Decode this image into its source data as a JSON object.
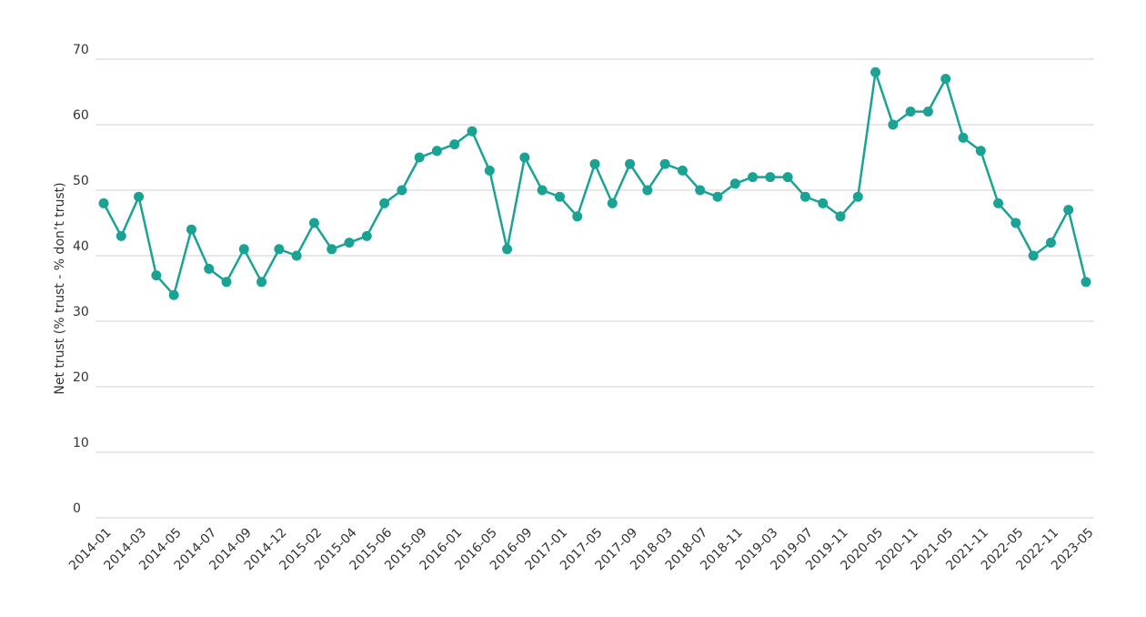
{
  "chart_data": {
    "type": "line",
    "y_label": "Net trust (% trust - % don’t trust)",
    "categories": [
      "2014-01",
      null,
      "2014-03",
      null,
      "2014-05",
      null,
      "2014-07",
      null,
      "2014-09",
      null,
      "2014-12",
      null,
      "2015-02",
      null,
      "2015-04",
      null,
      "2015-06",
      null,
      "2015-09",
      null,
      "2016-01",
      null,
      "2016-05",
      null,
      "2016-09",
      null,
      "2017-01",
      null,
      "2017-05",
      null,
      "2017-09",
      null,
      "2018-03",
      null,
      "2018-07",
      null,
      "2018-11",
      null,
      "2019-03",
      null,
      "2019-07",
      null,
      "2019-11",
      null,
      "2020-05",
      null,
      "2020-11",
      null,
      "2021-05",
      null,
      "2021-11",
      null,
      "2022-05",
      null,
      "2022-11",
      null,
      "2023-05"
    ],
    "series": [
      {
        "color": "#1aa394",
        "values": [
          48,
          43,
          49,
          37,
          34,
          44,
          38,
          36,
          41,
          36,
          41,
          40,
          45,
          41,
          42,
          43,
          48,
          50,
          55,
          56,
          57,
          59,
          53,
          41,
          55,
          50,
          49,
          46,
          54,
          48,
          54,
          50,
          54,
          53,
          50,
          49,
          51,
          52,
          52,
          52,
          49,
          48,
          46,
          49,
          68,
          60,
          62,
          62,
          67,
          58,
          56,
          48,
          45,
          40,
          42,
          47,
          36
        ]
      }
    ],
    "ylim": [
      0,
      70
    ],
    "yticks": [
      0,
      10,
      20,
      30,
      40,
      50,
      60,
      70
    ],
    "grid": true
  }
}
